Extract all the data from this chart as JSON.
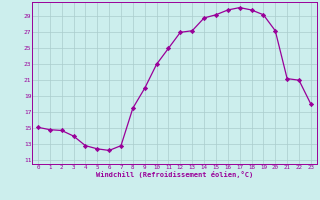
{
  "x": [
    0,
    1,
    2,
    3,
    4,
    5,
    6,
    7,
    8,
    9,
    10,
    11,
    12,
    13,
    14,
    15,
    16,
    17,
    18,
    19,
    20,
    21,
    22,
    23
  ],
  "y": [
    15.1,
    14.8,
    14.7,
    14.0,
    12.8,
    12.4,
    12.2,
    12.8,
    17.5,
    20.0,
    23.0,
    25.0,
    27.0,
    27.2,
    28.8,
    29.2,
    29.8,
    30.1,
    29.8,
    29.2,
    27.2,
    21.2,
    21.0,
    18.0
  ],
  "line_color": "#990099",
  "marker_color": "#990099",
  "bg_color": "#cceeed",
  "grid_color": "#aacccc",
  "xlabel": "Windchill (Refroidissement éolien,°C)",
  "yticks": [
    11,
    13,
    15,
    17,
    19,
    21,
    23,
    25,
    27,
    29
  ],
  "xticks": [
    0,
    1,
    2,
    3,
    4,
    5,
    6,
    7,
    8,
    9,
    10,
    11,
    12,
    13,
    14,
    15,
    16,
    17,
    18,
    19,
    20,
    21,
    22,
    23
  ],
  "xlim": [
    -0.5,
    23.5
  ],
  "ylim": [
    10.5,
    30.8
  ]
}
